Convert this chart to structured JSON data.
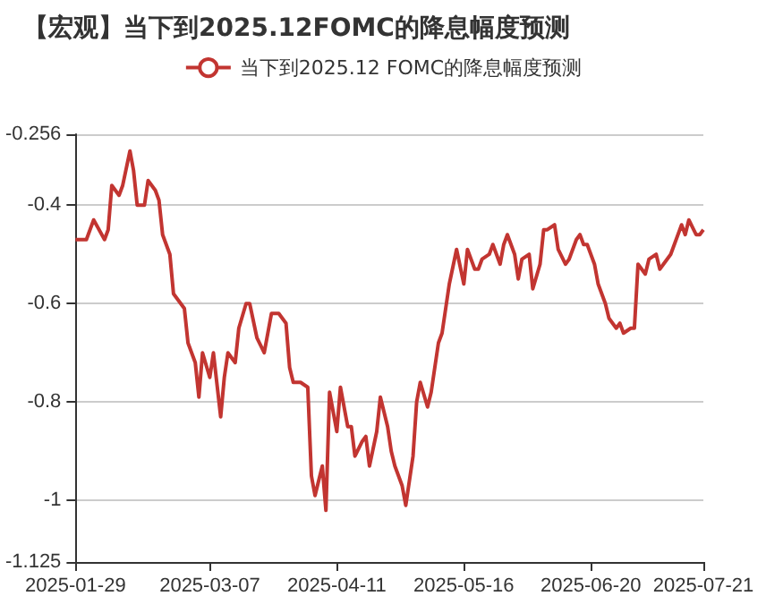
{
  "chart_data": {
    "type": "line",
    "title": "【宏观】当下到2025.12FOMC的降息幅度预测",
    "x": [
      "2025-01-29",
      "2025-01-31",
      "2025-02-01",
      "2025-02-03",
      "2025-02-06",
      "2025-02-07",
      "2025-02-08",
      "2025-02-10",
      "2025-02-11",
      "2025-02-13",
      "2025-02-14",
      "2025-02-15",
      "2025-02-17",
      "2025-02-18",
      "2025-02-20",
      "2025-02-21",
      "2025-02-22",
      "2025-02-24",
      "2025-02-25",
      "2025-02-26",
      "2025-02-28",
      "2025-03-01",
      "2025-03-03",
      "2025-03-04",
      "2025-03-05",
      "2025-03-07",
      "2025-03-08",
      "2025-03-10",
      "2025-03-11",
      "2025-03-12",
      "2025-03-14",
      "2025-03-15",
      "2025-03-17",
      "2025-03-18",
      "2025-03-20",
      "2025-03-22",
      "2025-03-24",
      "2025-03-26",
      "2025-03-28",
      "2025-03-29",
      "2025-03-30",
      "2025-04-01",
      "2025-04-03",
      "2025-04-04",
      "2025-04-05",
      "2025-04-07",
      "2025-04-08",
      "2025-04-09",
      "2025-04-11",
      "2025-04-12",
      "2025-04-14",
      "2025-04-15",
      "2025-04-16",
      "2025-04-18",
      "2025-04-19",
      "2025-04-20",
      "2025-04-22",
      "2025-04-23",
      "2025-04-25",
      "2025-04-26",
      "2025-04-27",
      "2025-04-29",
      "2025-04-30",
      "2025-05-02",
      "2025-05-03",
      "2025-05-04",
      "2025-05-06",
      "2025-05-07",
      "2025-05-09",
      "2025-05-10",
      "2025-05-12",
      "2025-05-14",
      "2025-05-16",
      "2025-05-17",
      "2025-05-19",
      "2025-05-20",
      "2025-05-21",
      "2025-05-23",
      "2025-05-24",
      "2025-05-26",
      "2025-05-27",
      "2025-05-28",
      "2025-05-30",
      "2025-05-31",
      "2025-06-01",
      "2025-06-03",
      "2025-06-04",
      "2025-06-06",
      "2025-06-07",
      "2025-06-08",
      "2025-06-10",
      "2025-06-11",
      "2025-06-13",
      "2025-06-14",
      "2025-06-16",
      "2025-06-17",
      "2025-06-18",
      "2025-06-19",
      "2025-06-21",
      "2025-06-22",
      "2025-06-24",
      "2025-06-25",
      "2025-06-27",
      "2025-06-28",
      "2025-06-29",
      "2025-07-01",
      "2025-07-02",
      "2025-07-03",
      "2025-07-05",
      "2025-07-06",
      "2025-07-08",
      "2025-07-09",
      "2025-07-10",
      "2025-07-12",
      "2025-07-13",
      "2025-07-15",
      "2025-07-16",
      "2025-07-17",
      "2025-07-19",
      "2025-07-20",
      "2025-07-21"
    ],
    "series": [
      {
        "name": "当下到2025.12 FOMC的降息幅度预测",
        "color": "#c23531",
        "values": [
          -0.47,
          -0.47,
          -0.47,
          -0.43,
          -0.47,
          -0.45,
          -0.36,
          -0.38,
          -0.36,
          -0.29,
          -0.33,
          -0.4,
          -0.4,
          -0.35,
          -0.37,
          -0.39,
          -0.46,
          -0.5,
          -0.58,
          -0.59,
          -0.61,
          -0.68,
          -0.72,
          -0.79,
          -0.7,
          -0.75,
          -0.7,
          -0.83,
          -0.75,
          -0.7,
          -0.72,
          -0.65,
          -0.6,
          -0.6,
          -0.67,
          -0.7,
          -0.62,
          -0.62,
          -0.64,
          -0.73,
          -0.76,
          -0.76,
          -0.77,
          -0.95,
          -0.99,
          -0.93,
          -1.02,
          -0.78,
          -0.86,
          -0.77,
          -0.85,
          -0.85,
          -0.91,
          -0.88,
          -0.87,
          -0.93,
          -0.86,
          -0.79,
          -0.85,
          -0.9,
          -0.93,
          -0.97,
          -1.01,
          -0.91,
          -0.8,
          -0.76,
          -0.81,
          -0.78,
          -0.68,
          -0.66,
          -0.56,
          -0.49,
          -0.56,
          -0.49,
          -0.53,
          -0.53,
          -0.51,
          -0.5,
          -0.48,
          -0.52,
          -0.48,
          -0.46,
          -0.5,
          -0.55,
          -0.51,
          -0.5,
          -0.57,
          -0.52,
          -0.45,
          -0.45,
          -0.44,
          -0.49,
          -0.52,
          -0.51,
          -0.47,
          -0.46,
          -0.48,
          -0.48,
          -0.52,
          -0.56,
          -0.6,
          -0.63,
          -0.65,
          -0.64,
          -0.66,
          -0.65,
          -0.65,
          -0.52,
          -0.54,
          -0.51,
          -0.5,
          -0.53,
          -0.52,
          -0.5,
          -0.48,
          -0.44,
          -0.46,
          -0.43,
          -0.46,
          -0.46,
          -0.45
        ]
      }
    ],
    "xlim": [
      "2025-01-29",
      "2025-07-21"
    ],
    "xticks": [
      "2025-01-29",
      "2025-03-07",
      "2025-04-11",
      "2025-05-16",
      "2025-06-20",
      "2025-07-21"
    ],
    "ylim": [
      -1.125,
      -0.256
    ],
    "yticks": [
      -1.125,
      -1,
      -0.8,
      -0.6,
      -0.4,
      -0.256
    ],
    "grid": "y",
    "legend": "top"
  }
}
